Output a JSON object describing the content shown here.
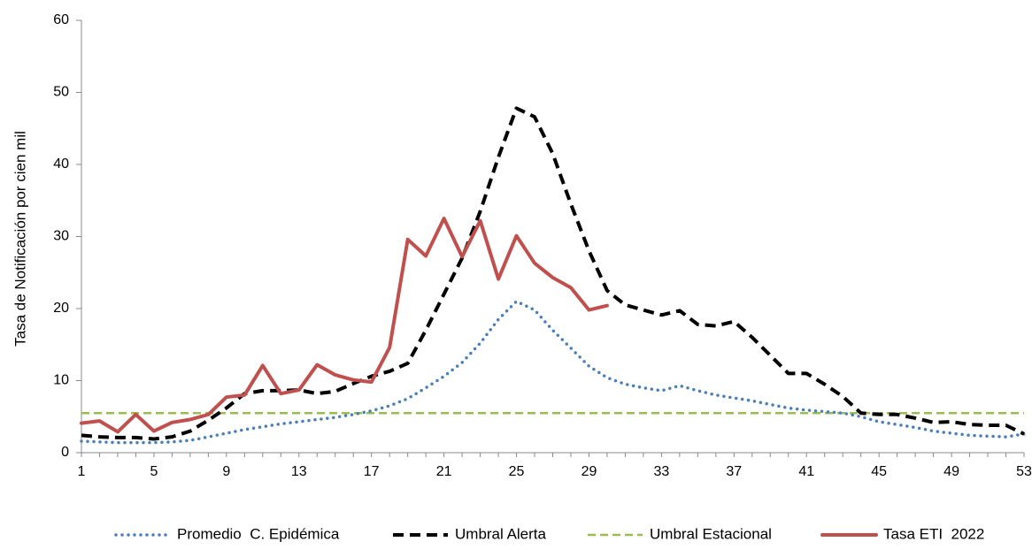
{
  "chart_data": {
    "type": "line",
    "title": "",
    "xlabel": "",
    "ylabel": "Tasa de Notificación por cien mil",
    "xlim": [
      1,
      53
    ],
    "ylim": [
      0,
      60
    ],
    "x_ticks": [
      1,
      5,
      9,
      13,
      17,
      21,
      25,
      29,
      33,
      37,
      41,
      45,
      49,
      53
    ],
    "y_ticks": [
      0,
      10,
      20,
      30,
      40,
      50,
      60
    ],
    "grid": false,
    "legend_position": "bottom",
    "series": [
      {
        "name": "Promedio  C. Epidémica",
        "color": "#4a7ebb",
        "style": "dotted",
        "x": [
          1,
          2,
          3,
          4,
          5,
          6,
          7,
          8,
          9,
          10,
          11,
          12,
          13,
          14,
          15,
          16,
          17,
          18,
          19,
          20,
          21,
          22,
          23,
          24,
          25,
          26,
          27,
          28,
          29,
          30,
          31,
          32,
          33,
          34,
          35,
          36,
          37,
          38,
          39,
          40,
          41,
          42,
          43,
          44,
          45,
          46,
          47,
          48,
          49,
          50,
          51,
          52,
          53
        ],
        "values": [
          1.6,
          1.5,
          1.4,
          1.4,
          1.4,
          1.5,
          1.7,
          2.2,
          2.7,
          3.2,
          3.6,
          4.0,
          4.3,
          4.6,
          4.9,
          5.3,
          5.8,
          6.5,
          7.5,
          9.0,
          10.6,
          12.5,
          15.2,
          18.5,
          21.0,
          19.8,
          17.0,
          14.5,
          12.0,
          10.4,
          9.5,
          9.0,
          8.6,
          9.3,
          8.6,
          8.0,
          7.6,
          7.2,
          6.7,
          6.2,
          5.9,
          5.7,
          5.5,
          5.0,
          4.3,
          3.9,
          3.5,
          3.0,
          2.7,
          2.4,
          2.3,
          2.2,
          2.6
        ]
      },
      {
        "name": "Umbral Alerta",
        "color": "#000000",
        "style": "dashed",
        "x": [
          1,
          2,
          3,
          4,
          5,
          6,
          7,
          8,
          9,
          10,
          11,
          12,
          13,
          14,
          15,
          16,
          17,
          18,
          19,
          20,
          21,
          22,
          23,
          24,
          25,
          26,
          27,
          28,
          29,
          30,
          31,
          32,
          33,
          34,
          35,
          36,
          37,
          38,
          39,
          40,
          41,
          42,
          43,
          44,
          45,
          46,
          47,
          48,
          49,
          50,
          51,
          52,
          53
        ],
        "values": [
          2.4,
          2.2,
          2.1,
          2.1,
          1.9,
          2.2,
          3.0,
          4.5,
          6.2,
          8.2,
          8.6,
          8.6,
          8.7,
          8.2,
          8.5,
          9.6,
          10.6,
          11.3,
          12.4,
          17.0,
          22.0,
          27.0,
          33.5,
          41.0,
          47.8,
          46.6,
          41.5,
          34.5,
          28.0,
          22.5,
          20.5,
          19.8,
          19.1,
          19.7,
          17.8,
          17.6,
          18.2,
          16.0,
          13.5,
          11.0,
          11.0,
          9.5,
          7.8,
          5.5,
          5.3,
          5.3,
          4.8,
          4.2,
          4.3,
          3.9,
          3.8,
          3.8,
          2.6
        ]
      },
      {
        "name": "Umbral Estacional",
        "color": "#9bbb59",
        "style": "dashed-thin",
        "x": [
          1,
          53
        ],
        "values": [
          5.5,
          5.5
        ]
      },
      {
        "name": "Tasa ETI  2022",
        "color": "#c0504d",
        "style": "solid",
        "x": [
          1,
          2,
          3,
          4,
          5,
          6,
          7,
          8,
          9,
          10,
          11,
          12,
          13,
          14,
          15,
          16,
          17,
          18,
          19,
          20,
          21,
          22,
          23,
          24,
          25,
          26,
          27,
          28,
          29,
          30
        ],
        "values": [
          4.1,
          4.4,
          2.9,
          5.3,
          3.0,
          4.2,
          4.6,
          5.3,
          7.7,
          8.0,
          12.1,
          8.2,
          8.7,
          12.2,
          10.8,
          10.1,
          9.8,
          14.6,
          29.6,
          27.3,
          32.5,
          27.2,
          32.2,
          24.1,
          30.1,
          26.3,
          24.3,
          22.9,
          19.8,
          20.4
        ]
      }
    ]
  }
}
